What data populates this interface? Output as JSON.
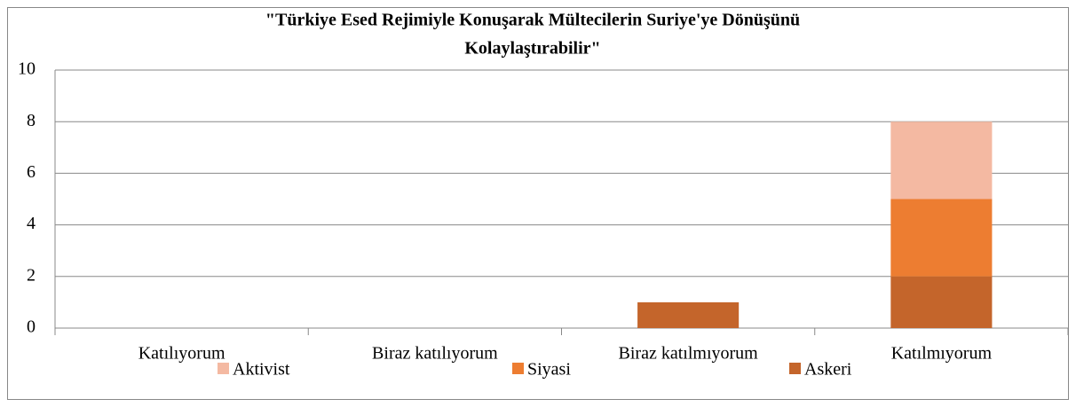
{
  "chart_data": {
    "type": "stacked_bar",
    "title": [
      "\"Türkiye Esed Rejimiyle Konuşarak Mültecilerin Suriye'ye Dönüşünü",
      "Kolaylaştırabilir\""
    ],
    "categories": [
      "Katılıyorum",
      "Biraz katılıyorum",
      "Biraz katılmıyorum",
      "Katılmıyorum"
    ],
    "series": [
      {
        "name": "Askeri",
        "color": "#c4652b",
        "values": [
          0,
          0,
          1,
          2
        ]
      },
      {
        "name": "Siyasi",
        "color": "#ed7d31",
        "values": [
          0,
          0,
          0,
          3
        ]
      },
      {
        "name": "Aktivist",
        "color": "#f4b9a2",
        "values": [
          0,
          0,
          0,
          3
        ]
      }
    ],
    "ylim": [
      0,
      10
    ],
    "yticks": [
      0,
      2,
      4,
      6,
      8,
      10
    ],
    "grid": true,
    "legend": "bottom"
  }
}
